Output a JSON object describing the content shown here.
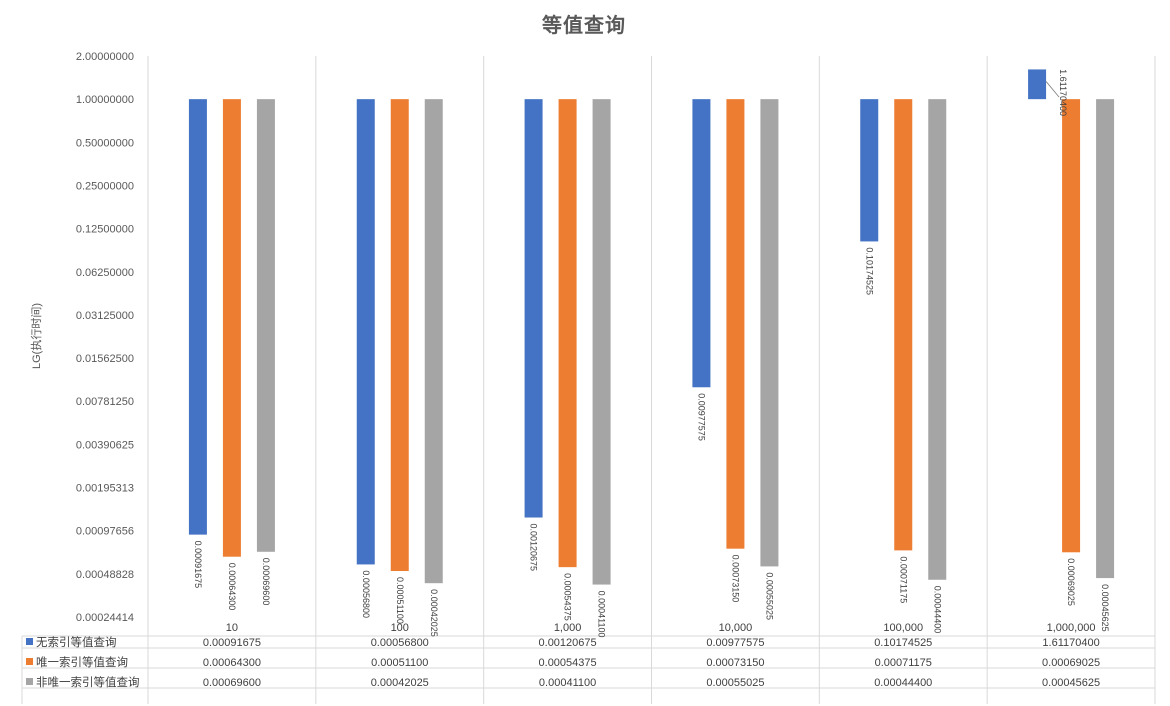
{
  "chart_data": {
    "type": "bar",
    "title": "等值查询",
    "ylabel": "LG(执行时间)",
    "xlabel": "",
    "y_scale": "log2",
    "ylim": [
      0.00024414,
      2.0
    ],
    "yticks": [
      "2.00000000",
      "1.00000000",
      "0.50000000",
      "0.25000000",
      "0.12500000",
      "0.06250000",
      "0.03125000",
      "0.01562500",
      "0.00781250",
      "0.00390625",
      "0.00195313",
      "0.00097656",
      "0.00048828",
      "0.00024414"
    ],
    "baseline": 1.0,
    "grid": "vertical",
    "legend": "data-table",
    "categories": [
      "10",
      "100",
      "1,000",
      "10,000",
      "100,000",
      "1,000,000"
    ],
    "series": [
      {
        "name": "无索引等值查询",
        "color": "#4472C4",
        "values": [
          0.00091675,
          0.000568,
          0.00120675,
          0.00977575,
          0.10174525,
          1.611704
        ],
        "labels": [
          "0.00091675",
          "0.00056800",
          "0.00120675",
          "0.00977575",
          "0.10174525",
          "1.61170400"
        ]
      },
      {
        "name": "唯一索引等值查询",
        "color": "#ED7D31",
        "values": [
          0.000643,
          0.000511,
          0.00054375,
          0.0007315,
          0.00071175,
          0.00069025
        ],
        "labels": [
          "0.00064300",
          "0.00051100",
          "0.00054375",
          "0.00073150",
          "0.00071175",
          "0.00069025"
        ]
      },
      {
        "name": "非唯一索引等值查询",
        "color": "#A5A5A5",
        "values": [
          0.000696,
          0.00042025,
          0.000411,
          0.00055025,
          0.000444,
          0.00045625
        ],
        "labels": [
          "0.00069600",
          "0.00042025",
          "0.00041100",
          "0.00055025",
          "0.00044400",
          "0.00045625"
        ]
      }
    ]
  }
}
